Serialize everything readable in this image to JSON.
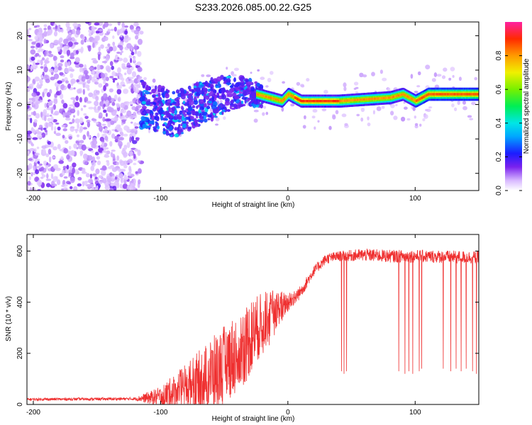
{
  "title": "S233.2026.085.00.22.G25",
  "colors": {
    "snr_line": "#ef3030",
    "axis": "#000000",
    "background": "#ffffff"
  },
  "colorbar": {
    "label": "Normalized spectral amplitude",
    "range": [
      0,
      1
    ],
    "ticks": [
      0.0,
      0.2,
      0.4,
      0.6,
      0.8
    ],
    "tick_labels": [
      "0.0",
      "0.2",
      "0.4",
      "0.6",
      "0.8"
    ],
    "colormap": "rainbow (white → violet → blue → cyan → green → yellow → orange → red → magenta)"
  },
  "chart_data": [
    {
      "type": "heatmap",
      "name": "spectrogram",
      "xlabel": "Height of straight line (km)",
      "ylabel": "Frequency (Hz)",
      "xlim": [
        -205,
        150
      ],
      "ylim": [
        -25,
        24
      ],
      "xticks": [
        -200,
        -100,
        0,
        100
      ],
      "xtick_labels": [
        "-200",
        "-100",
        "0",
        "100"
      ],
      "yticks": [
        -20,
        -10,
        0,
        10,
        20
      ],
      "ytick_labels": [
        "-20",
        "-10",
        "0",
        "10",
        "20"
      ],
      "regions": [
        {
          "x_range": [
            -205,
            -115
          ],
          "freq_spread": 24,
          "amplitude": 0.08,
          "description": "broadband noise"
        },
        {
          "x_range": [
            -115,
            -20
          ],
          "freq_center": [
            -1,
            3
          ],
          "freq_spread": [
            7,
            5
          ],
          "amplitude": [
            0.15,
            0.35
          ],
          "description": "scintillating signal"
        },
        {
          "x_range": [
            -20,
            150
          ],
          "freq_center": [
            1,
            3
          ],
          "freq_spread": 0.8,
          "amplitude": [
            0.6,
            0.9
          ],
          "description": "clean tone"
        }
      ],
      "ridge": [
        {
          "x": -110,
          "f": 0
        },
        {
          "x": -90,
          "f": -3
        },
        {
          "x": -70,
          "f": 0
        },
        {
          "x": -50,
          "f": 3
        },
        {
          "x": -35,
          "f": 4
        },
        {
          "x": -25,
          "f": 3
        },
        {
          "x": -15,
          "f": 2
        },
        {
          "x": -5,
          "f": 1
        },
        {
          "x": 0,
          "f": 3
        },
        {
          "x": 10,
          "f": 1
        },
        {
          "x": 20,
          "f": 1
        },
        {
          "x": 40,
          "f": 1
        },
        {
          "x": 60,
          "f": 1.5
        },
        {
          "x": 80,
          "f": 2
        },
        {
          "x": 90,
          "f": 3
        },
        {
          "x": 100,
          "f": 1
        },
        {
          "x": 110,
          "f": 3
        },
        {
          "x": 130,
          "f": 3
        },
        {
          "x": 150,
          "f": 3
        }
      ]
    },
    {
      "type": "line",
      "name": "snr",
      "xlabel": "Height of straight line (km)",
      "ylabel": "SNR (10 * v/v)",
      "xlim": [
        -205,
        150
      ],
      "ylim": [
        0,
        665
      ],
      "xticks": [
        -200,
        -100,
        0,
        100
      ],
      "xtick_labels": [
        "-200",
        "-100",
        "0",
        "100"
      ],
      "yticks": [
        0,
        200,
        400,
        600
      ],
      "ytick_labels": [
        "0",
        "200",
        "400",
        "600"
      ],
      "series": [
        {
          "name": "SNR",
          "envelope_x": [
            -205,
            -120,
            -100,
            -80,
            -60,
            -40,
            -30,
            -20,
            -10,
            0,
            10,
            20,
            30,
            40,
            60,
            80,
            100,
            120,
            150
          ],
          "envelope_y": [
            20,
            22,
            30,
            70,
            120,
            200,
            260,
            320,
            370,
            400,
            440,
            520,
            570,
            580,
            585,
            580,
            580,
            578,
            575
          ],
          "noise_amplitude": [
            5,
            6,
            40,
            90,
            140,
            160,
            150,
            120,
            80,
            40,
            25,
            20,
            20,
            20,
            25,
            25,
            25,
            25,
            25
          ],
          "dropouts": [
            {
              "x": 42,
              "y": 130
            },
            {
              "x": 44,
              "y": 120
            },
            {
              "x": 46,
              "y": 130
            },
            {
              "x": 87,
              "y": 130
            },
            {
              "x": 92,
              "y": 120
            },
            {
              "x": 95,
              "y": 130
            },
            {
              "x": 98,
              "y": 120
            },
            {
              "x": 103,
              "y": 130
            },
            {
              "x": 105,
              "y": 140
            },
            {
              "x": 122,
              "y": 140
            },
            {
              "x": 128,
              "y": 130
            },
            {
              "x": 132,
              "y": 140
            },
            {
              "x": 136,
              "y": 130
            },
            {
              "x": 140,
              "y": 140
            },
            {
              "x": 145,
              "y": 130
            },
            {
              "x": 148,
              "y": 120
            }
          ]
        }
      ]
    }
  ]
}
